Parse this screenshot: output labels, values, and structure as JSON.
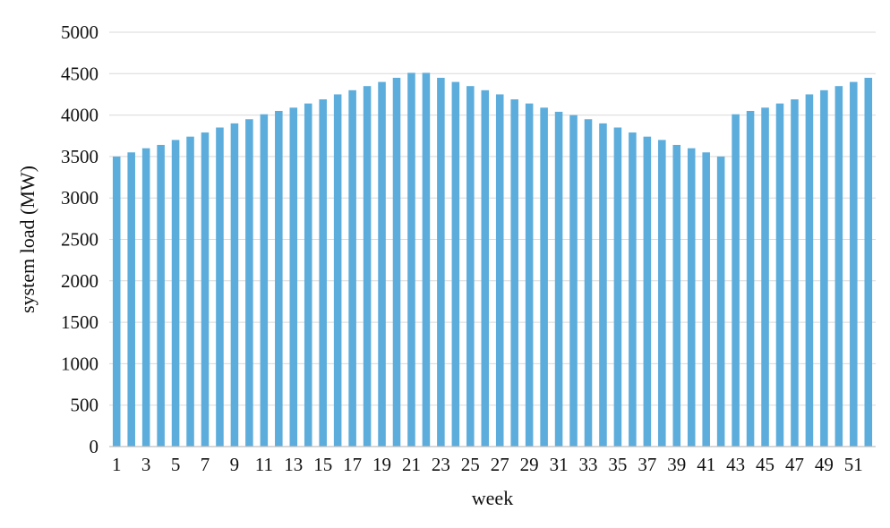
{
  "chart_data": {
    "type": "bar",
    "title": "",
    "xlabel": "week",
    "ylabel": "system load (MW)",
    "ylim": [
      0,
      5000
    ],
    "yticks": [
      0,
      500,
      1000,
      1500,
      2000,
      2500,
      3000,
      3500,
      4000,
      4500,
      5000
    ],
    "grid": true,
    "legend": "none",
    "bar_color": "#5DADDC",
    "categories": [
      "1",
      "2",
      "3",
      "4",
      "5",
      "6",
      "7",
      "8",
      "9",
      "10",
      "11",
      "12",
      "13",
      "14",
      "15",
      "16",
      "17",
      "18",
      "19",
      "20",
      "21",
      "22",
      "23",
      "24",
      "25",
      "26",
      "27",
      "28",
      "29",
      "30",
      "31",
      "32",
      "33",
      "34",
      "35",
      "36",
      "37",
      "38",
      "39",
      "40",
      "41",
      "42",
      "43",
      "44",
      "45",
      "46",
      "47",
      "48",
      "49",
      "50",
      "51",
      "52"
    ],
    "xtick_labels": [
      "1",
      "3",
      "5",
      "7",
      "9",
      "11",
      "13",
      "15",
      "17",
      "19",
      "21",
      "23",
      "25",
      "27",
      "29",
      "31",
      "33",
      "35",
      "37",
      "39",
      "41",
      "43",
      "45",
      "47",
      "49",
      "51"
    ],
    "values": [
      3500,
      3550,
      3600,
      3640,
      3700,
      3740,
      3790,
      3850,
      3900,
      3950,
      4010,
      4050,
      4090,
      4140,
      4190,
      4250,
      4300,
      4350,
      4400,
      4450,
      4510,
      4510,
      4450,
      4400,
      4350,
      4300,
      4250,
      4190,
      4140,
      4090,
      4040,
      4000,
      3950,
      3900,
      3850,
      3790,
      3740,
      3700,
      3640,
      3600,
      3550,
      3500,
      4010,
      4050,
      4090,
      4140,
      4190,
      4250,
      4300,
      4350,
      4400,
      4450
    ]
  }
}
